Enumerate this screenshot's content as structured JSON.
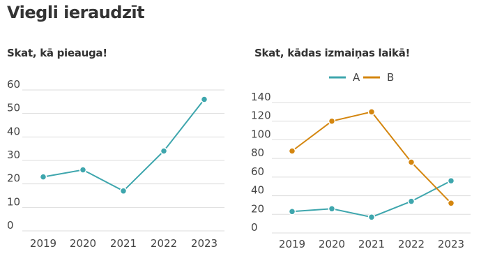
{
  "page": {
    "title": "Viegli ieraudzīt"
  },
  "colors": {
    "A": "#3ea6ad",
    "B": "#d4860f",
    "grid": "#dddddd",
    "text": "#444444"
  },
  "chart_data": [
    {
      "type": "line",
      "title": "Skat, kā pieauga!",
      "categories": [
        "2019",
        "2020",
        "2021",
        "2022",
        "2023"
      ],
      "series": [
        {
          "values": [
            23,
            26,
            17,
            34,
            56
          ]
        }
      ],
      "yticks": [
        "0",
        "10",
        "20",
        "30",
        "40",
        "50",
        "60"
      ],
      "ylim": [
        0,
        60
      ],
      "grid": true,
      "legend": "none"
    },
    {
      "type": "line",
      "title": "Skat, kādas izmaiņas laikā!",
      "categories": [
        "2019",
        "2020",
        "2021",
        "2022",
        "2023"
      ],
      "series": [
        {
          "name": "A",
          "values": [
            23,
            26,
            17,
            34,
            56
          ]
        },
        {
          "name": "B",
          "values": [
            88,
            120,
            130,
            76,
            32
          ]
        }
      ],
      "yticks": [
        "0",
        "20",
        "40",
        "60",
        "80",
        "100",
        "120",
        "140"
      ],
      "ylim": [
        0,
        140
      ],
      "grid": true,
      "legend": "top"
    }
  ]
}
